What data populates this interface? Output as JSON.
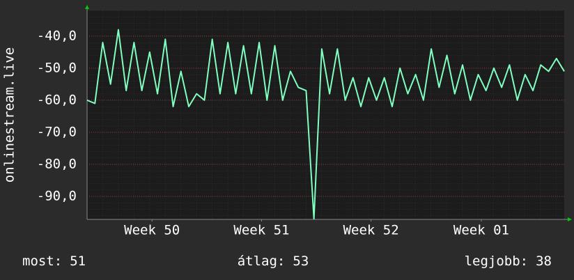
{
  "chart_data": {
    "type": "line",
    "ylabel": "onlinestream.live",
    "x": [
      0,
      0.5,
      1,
      1.5,
      2,
      2.5,
      3,
      3.5,
      4,
      4.5,
      5,
      5.5,
      6,
      6.5,
      7,
      7.5,
      8,
      8.5,
      9,
      9.5,
      10,
      10.5,
      11,
      11.5,
      12,
      12.5,
      13,
      13.5,
      14,
      14.5,
      15,
      15.5,
      16,
      16.5,
      17,
      17.5,
      18,
      18.5,
      19,
      19.5,
      20,
      20.5,
      21,
      21.5,
      22,
      22.5,
      23,
      23.5,
      24,
      24.5,
      25,
      25.5,
      26,
      26.5,
      27,
      27.5,
      28,
      28.5,
      29,
      29.5,
      30,
      30.5
    ],
    "series": [
      {
        "color": "#7fffc0",
        "values": [
          -60,
          -61,
          -42,
          -55,
          -38,
          -57,
          -42,
          -57,
          -45,
          -58,
          -41,
          -62,
          -51,
          -62,
          -58,
          -60,
          -41,
          -58,
          -42,
          -58,
          -43,
          -58,
          -42,
          -60,
          -43,
          -60,
          -51,
          -56,
          -57,
          -97,
          -44,
          -58,
          -44,
          -60,
          -53,
          -62,
          -53,
          -60,
          -53,
          -62,
          -50,
          -58,
          -52,
          -60,
          -44,
          -56,
          -46,
          -58,
          -49,
          -60,
          -52,
          -57,
          -50,
          -56,
          -49,
          -60,
          -52,
          -57,
          -49,
          -51,
          -47,
          -51
        ]
      }
    ],
    "xlim": [
      0,
      30.5
    ],
    "xticks": [
      {
        "value": 4.15,
        "label": "Week 50"
      },
      {
        "value": 11.15,
        "label": "Week 51"
      },
      {
        "value": 18.15,
        "label": "Week 52"
      },
      {
        "value": 25.2,
        "label": "Week 01"
      }
    ],
    "ylim": [
      -97.2,
      -32
    ],
    "yticks": [
      {
        "value": -40,
        "label": "-40,0"
      },
      {
        "value": -50,
        "label": "-50,0"
      },
      {
        "value": -60,
        "label": "-60,0"
      },
      {
        "value": -70,
        "label": "-70,0"
      },
      {
        "value": -80,
        "label": "-80,0"
      },
      {
        "value": -90,
        "label": "-90,0"
      }
    ],
    "grid": true,
    "footer": [
      {
        "label": "most:",
        "value": "51"
      },
      {
        "label": "átlag:",
        "value": "53"
      },
      {
        "label": "legjobb:",
        "value": "38"
      }
    ]
  }
}
